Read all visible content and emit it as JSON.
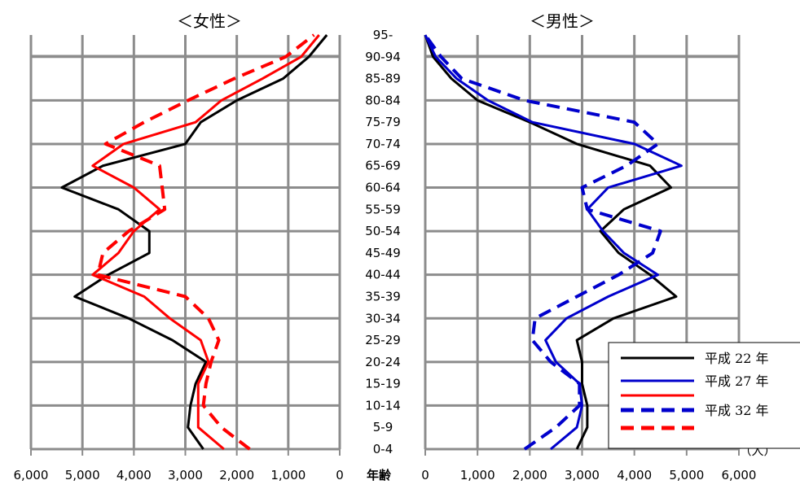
{
  "chart_data": [
    {
      "type": "line",
      "title": "＜女性＞",
      "xlim": [
        6000,
        0
      ],
      "x_ticks": [
        "6,000",
        "5,000",
        "4,000",
        "3,000",
        "2,000",
        "1,000",
        "0"
      ],
      "categories": [
        "0-4",
        "5-9",
        "10-14",
        "15-19",
        "20-24",
        "25-29",
        "30-34",
        "35-39",
        "40-44",
        "45-49",
        "50-54",
        "55-59",
        "60-64",
        "65-69",
        "70-74",
        "75-79",
        "80-84",
        "85-89",
        "90-94",
        "95-"
      ],
      "series": [
        {
          "name": "平成 22 年",
          "color": "#000000",
          "dash": false,
          "values": [
            2650,
            2950,
            2900,
            2800,
            2600,
            3250,
            4100,
            5150,
            4500,
            3700,
            3700,
            4300,
            5400,
            4600,
            3000,
            2700,
            2000,
            1100,
            600,
            250
          ]
        },
        {
          "name": "平成 27 年",
          "color": "#ff0000",
          "dash": false,
          "values": [
            2250,
            2750,
            2750,
            2750,
            2550,
            2700,
            3300,
            3800,
            4800,
            4300,
            4000,
            3500,
            4000,
            4800,
            4200,
            2800,
            2300,
            1500,
            750,
            400
          ]
        },
        {
          "name": "平成 32 年",
          "color": "#ff0000",
          "dash": true,
          "values": [
            1750,
            2300,
            2650,
            2600,
            2500,
            2350,
            2550,
            3000,
            4700,
            4600,
            4100,
            3400,
            3450,
            3500,
            4550,
            3800,
            2950,
            2050,
            1050,
            500
          ]
        }
      ]
    },
    {
      "type": "line",
      "title": "＜男性＞",
      "xlim": [
        0,
        6000
      ],
      "x_ticks": [
        "0",
        "1,000",
        "2,000",
        "3,000",
        "4,000",
        "5,000",
        "6,000"
      ],
      "categories": [
        "0-4",
        "5-9",
        "10-14",
        "15-19",
        "20-24",
        "25-29",
        "30-34",
        "35-39",
        "40-44",
        "45-49",
        "50-54",
        "55-59",
        "60-64",
        "65-69",
        "70-74",
        "75-79",
        "80-84",
        "85-89",
        "90-94",
        "95-"
      ],
      "series": [
        {
          "name": "平成 22 年",
          "color": "#000000",
          "dash": false,
          "values": [
            2900,
            3100,
            3100,
            3000,
            3000,
            2900,
            3600,
            4800,
            4300,
            3700,
            3350,
            3800,
            4700,
            4300,
            2900,
            2000,
            1000,
            500,
            150,
            0
          ]
        },
        {
          "name": "平成 27 年",
          "color": "#0000cc",
          "dash": false,
          "values": [
            2400,
            2900,
            3000,
            2950,
            2500,
            2300,
            2700,
            3500,
            4450,
            3800,
            3400,
            3100,
            3500,
            4900,
            4000,
            2050,
            1200,
            600,
            200,
            0
          ]
        },
        {
          "name": "平成 32 年",
          "color": "#0000cc",
          "dash": true,
          "values": [
            1900,
            2500,
            2950,
            2950,
            2400,
            2050,
            2100,
            2900,
            3700,
            4350,
            4500,
            3100,
            3000,
            3850,
            4450,
            4000,
            1900,
            700,
            300,
            0
          ]
        }
      ]
    }
  ],
  "axis": {
    "age_label": "年齢",
    "unit_label": "（人）"
  },
  "legend": {
    "items": [
      "平成 22 年",
      "平成 27 年",
      "平成 32 年"
    ]
  }
}
